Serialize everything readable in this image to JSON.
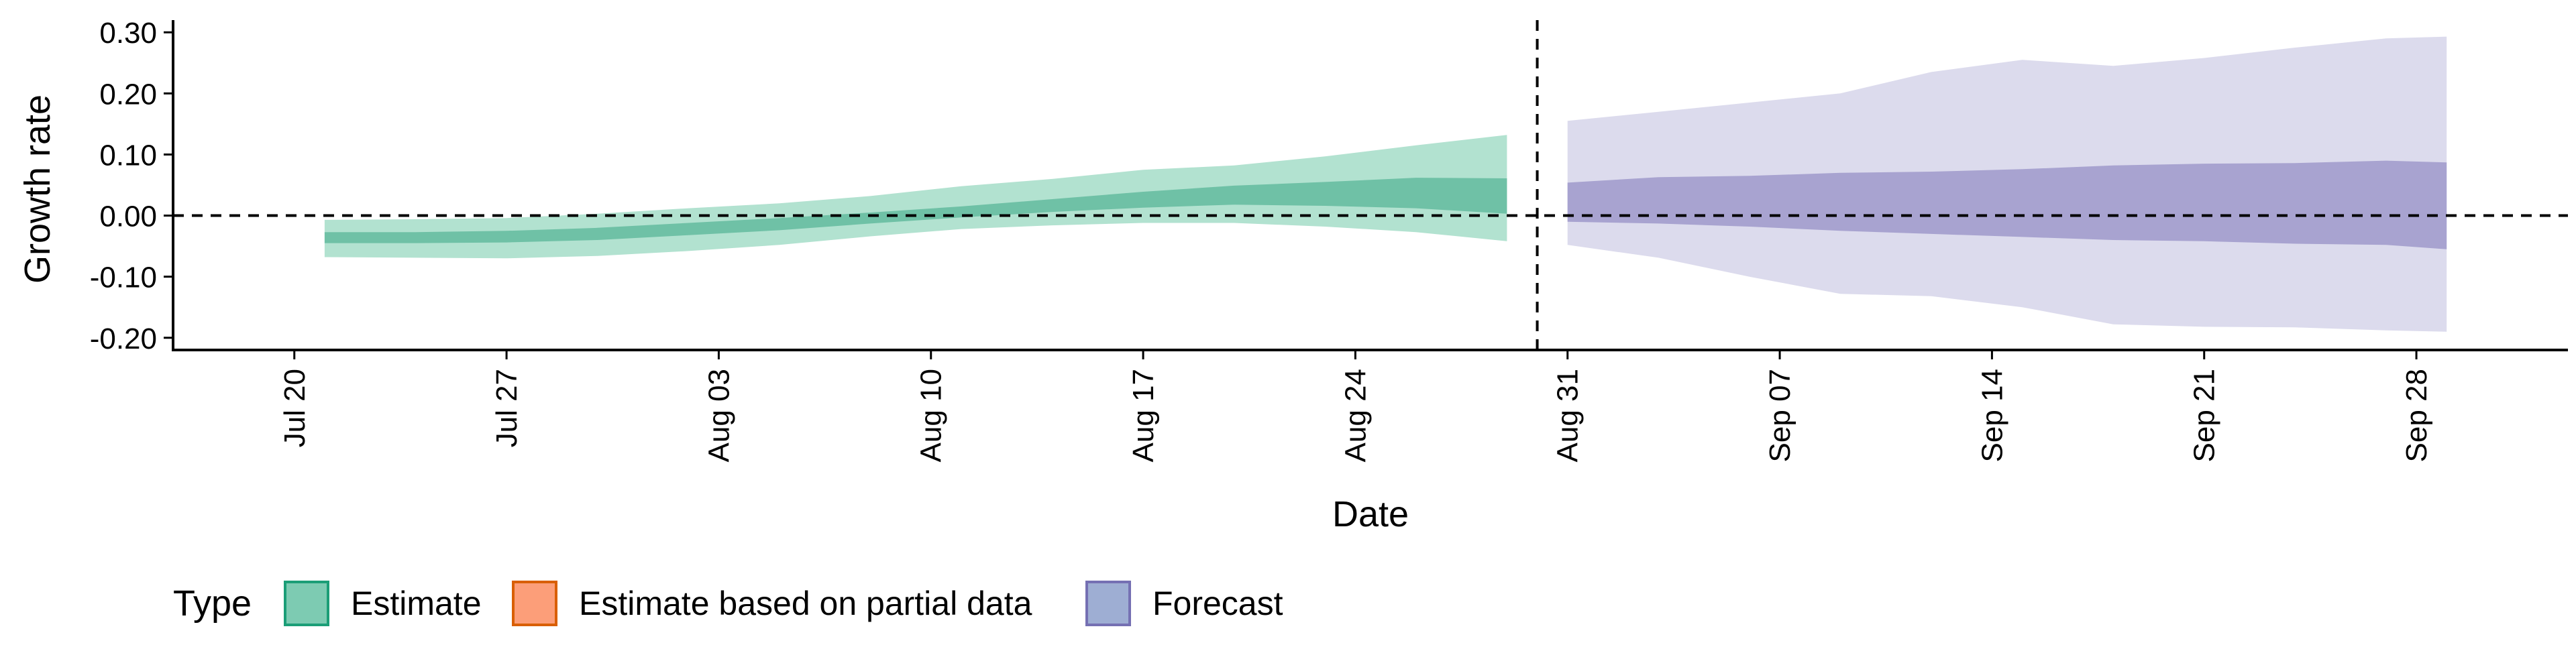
{
  "chart_data": {
    "type": "area",
    "xlabel": "Date",
    "ylabel": "Growth rate",
    "ylim": [
      -0.22,
      0.32
    ],
    "xlim": [
      "2020-07-16",
      "2020-10-03"
    ],
    "x_ticks": [
      {
        "date": "2020-07-20",
        "label": "Jul 20"
      },
      {
        "date": "2020-07-27",
        "label": "Jul 27"
      },
      {
        "date": "2020-08-03",
        "label": "Aug 03"
      },
      {
        "date": "2020-08-10",
        "label": "Aug 10"
      },
      {
        "date": "2020-08-17",
        "label": "Aug 17"
      },
      {
        "date": "2020-08-24",
        "label": "Aug 24"
      },
      {
        "date": "2020-08-31",
        "label": "Aug 31"
      },
      {
        "date": "2020-09-07",
        "label": "Sep 07"
      },
      {
        "date": "2020-09-14",
        "label": "Sep 14"
      },
      {
        "date": "2020-09-21",
        "label": "Sep 21"
      },
      {
        "date": "2020-09-28",
        "label": "Sep 28"
      }
    ],
    "y_ticks": [
      {
        "value": 0.3,
        "label": "0.30"
      },
      {
        "value": 0.2,
        "label": "0.20"
      },
      {
        "value": 0.1,
        "label": "0.10"
      },
      {
        "value": 0.0,
        "label": "0.00"
      },
      {
        "value": -0.1,
        "label": "-0.10"
      },
      {
        "value": -0.2,
        "label": "-0.20"
      }
    ],
    "reference_lines": {
      "horizontal_y": 0.0,
      "vertical_date": "2020-08-30",
      "style": "dashed"
    },
    "grid": false,
    "legend": {
      "title": "Type",
      "position": "bottom",
      "items": [
        {
          "label": "Estimate",
          "fill": "#66c2a5",
          "stroke": "#1b9e77"
        },
        {
          "label": "Estimate based on partial data",
          "fill": "#fc8d62",
          "stroke": "#d95f02"
        },
        {
          "label": "Forecast",
          "fill": "#8da0cb",
          "stroke": "#7570b3"
        }
      ]
    },
    "series": [
      {
        "name": "Estimate",
        "outer_color": "#b2e2d0",
        "inner_color": "#6fc1a6",
        "points": [
          {
            "date": "2020-07-21",
            "lo90": -0.068,
            "lo50": -0.045,
            "hi50": -0.027,
            "hi90": -0.007
          },
          {
            "date": "2020-07-24",
            "lo90": -0.069,
            "lo50": -0.045,
            "hi50": -0.027,
            "hi90": -0.006
          },
          {
            "date": "2020-07-27",
            "lo90": -0.07,
            "lo50": -0.044,
            "hi50": -0.025,
            "hi90": -0.004
          },
          {
            "date": "2020-07-30",
            "lo90": -0.066,
            "lo50": -0.04,
            "hi50": -0.02,
            "hi90": 0.003
          },
          {
            "date": "2020-08-02",
            "lo90": -0.058,
            "lo50": -0.032,
            "hi50": -0.012,
            "hi90": 0.012
          },
          {
            "date": "2020-08-05",
            "lo90": -0.048,
            "lo50": -0.024,
            "hi50": -0.004,
            "hi90": 0.02
          },
          {
            "date": "2020-08-08",
            "lo90": -0.034,
            "lo50": -0.013,
            "hi50": 0.005,
            "hi90": 0.032
          },
          {
            "date": "2020-08-11",
            "lo90": -0.022,
            "lo50": -0.003,
            "hi50": 0.015,
            "hi90": 0.048
          },
          {
            "date": "2020-08-14",
            "lo90": -0.016,
            "lo50": 0.006,
            "hi50": 0.027,
            "hi90": 0.06
          },
          {
            "date": "2020-08-17",
            "lo90": -0.012,
            "lo50": 0.013,
            "hi50": 0.039,
            "hi90": 0.075
          },
          {
            "date": "2020-08-20",
            "lo90": -0.012,
            "lo50": 0.018,
            "hi50": 0.049,
            "hi90": 0.082
          },
          {
            "date": "2020-08-23",
            "lo90": -0.018,
            "lo50": 0.016,
            "hi50": 0.055,
            "hi90": 0.097
          },
          {
            "date": "2020-08-26",
            "lo90": -0.027,
            "lo50": 0.012,
            "hi50": 0.062,
            "hi90": 0.115
          },
          {
            "date": "2020-08-29",
            "lo90": -0.042,
            "lo50": 0.003,
            "hi50": 0.061,
            "hi90": 0.132
          }
        ]
      },
      {
        "name": "Forecast",
        "outer_color": "#dcdbed",
        "inner_color": "#a8a3d0",
        "points": [
          {
            "date": "2020-08-31",
            "lo90": -0.048,
            "lo50": -0.01,
            "hi50": 0.054,
            "hi90": 0.155
          },
          {
            "date": "2020-09-03",
            "lo90": -0.069,
            "lo50": -0.013,
            "hi50": 0.063,
            "hi90": 0.17
          },
          {
            "date": "2020-09-06",
            "lo90": -0.1,
            "lo50": -0.018,
            "hi50": 0.065,
            "hi90": 0.185
          },
          {
            "date": "2020-09-09",
            "lo90": -0.128,
            "lo50": -0.025,
            "hi50": 0.07,
            "hi90": 0.2
          },
          {
            "date": "2020-09-12",
            "lo90": -0.132,
            "lo50": -0.03,
            "hi50": 0.072,
            "hi90": 0.235
          },
          {
            "date": "2020-09-15",
            "lo90": -0.15,
            "lo50": -0.035,
            "hi50": 0.076,
            "hi90": 0.255
          },
          {
            "date": "2020-09-18",
            "lo90": -0.178,
            "lo50": -0.04,
            "hi50": 0.082,
            "hi90": 0.245
          },
          {
            "date": "2020-09-21",
            "lo90": -0.182,
            "lo50": -0.042,
            "hi50": 0.085,
            "hi90": 0.258
          },
          {
            "date": "2020-09-24",
            "lo90": -0.183,
            "lo50": -0.046,
            "hi50": 0.086,
            "hi90": 0.275
          },
          {
            "date": "2020-09-27",
            "lo90": -0.188,
            "lo50": -0.048,
            "hi50": 0.09,
            "hi90": 0.29
          },
          {
            "date": "2020-09-29",
            "lo90": -0.19,
            "lo50": -0.055,
            "hi50": 0.087,
            "hi90": 0.293
          }
        ]
      }
    ]
  }
}
